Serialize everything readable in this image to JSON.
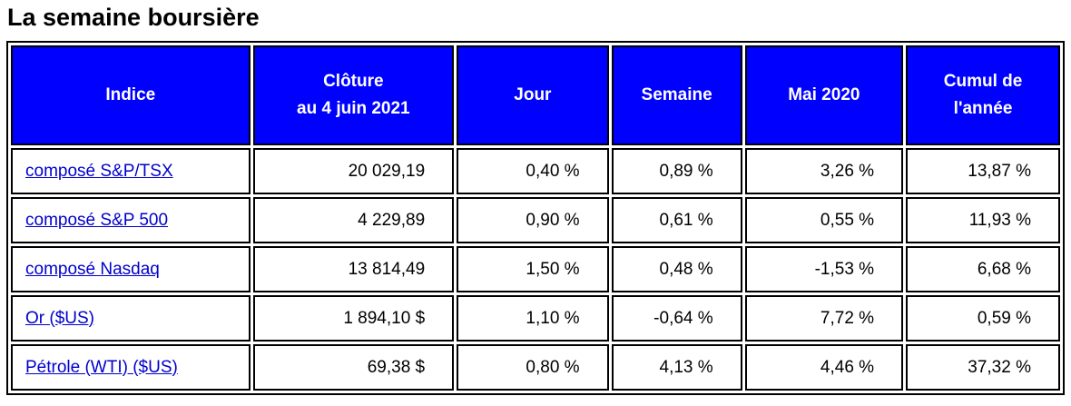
{
  "title": "La semaine boursière",
  "table": {
    "headers": [
      [
        "Indice"
      ],
      [
        "Clôture",
        "au 4 juin 2021"
      ],
      [
        "Jour"
      ],
      [
        "Semaine"
      ],
      [
        "Mai 2020"
      ],
      [
        "Cumul de",
        "l'année"
      ]
    ],
    "rows": [
      [
        "composé S&P/TSX",
        "20 029,19",
        "0,40 %",
        "0,89 %",
        "3,26 %",
        "13,87 %"
      ],
      [
        "composé S&P 500",
        "4 229,89",
        "0,90 %",
        "0,61 %",
        "0,55 %",
        "11,93 %"
      ],
      [
        "composé Nasdaq",
        "13 814,49",
        "1,50 %",
        "0,48 %",
        "-1,53 %",
        "6,68 %"
      ],
      [
        "Or ($US)",
        "1 894,10 $",
        "1,10 %",
        "-0,64 %",
        "7,72 %",
        "0,59 %"
      ],
      [
        "Pétrole (WTI) ($US)",
        "69,38 $",
        "0,80 %",
        "4,13 %",
        "4,46 %",
        "37,32 %"
      ]
    ]
  }
}
